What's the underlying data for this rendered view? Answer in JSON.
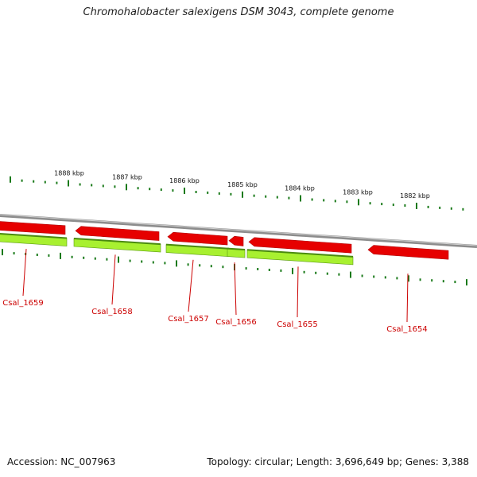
{
  "title": "Chromohalobacter salexigens DSM 3043, complete genome",
  "footer": {
    "accession": "Accession: NC_007963",
    "topology": "Topology: circular; Length: 3,696,649 bp; Genes: 3,388"
  },
  "colors": {
    "backbone": "#8c8c8c",
    "gene_forward": "#e60000",
    "gene_cds": "#a8f030",
    "tick": "#1a7a1a",
    "label": "#cc0000",
    "kbp_label": "#111111"
  },
  "kbp_labels": [
    "1888 kbp",
    "1887 kbp",
    "1886 kbp",
    "1885 kbp",
    "1884 kbp",
    "1883 kbp",
    "1882 kbp"
  ],
  "genes": [
    {
      "label": "Csal_1659"
    },
    {
      "label": "Csal_1658"
    },
    {
      "label": "Csal_1657"
    },
    {
      "label": "Csal_1656"
    },
    {
      "label": "Csal_1655"
    },
    {
      "label": "Csal_1654"
    }
  ]
}
